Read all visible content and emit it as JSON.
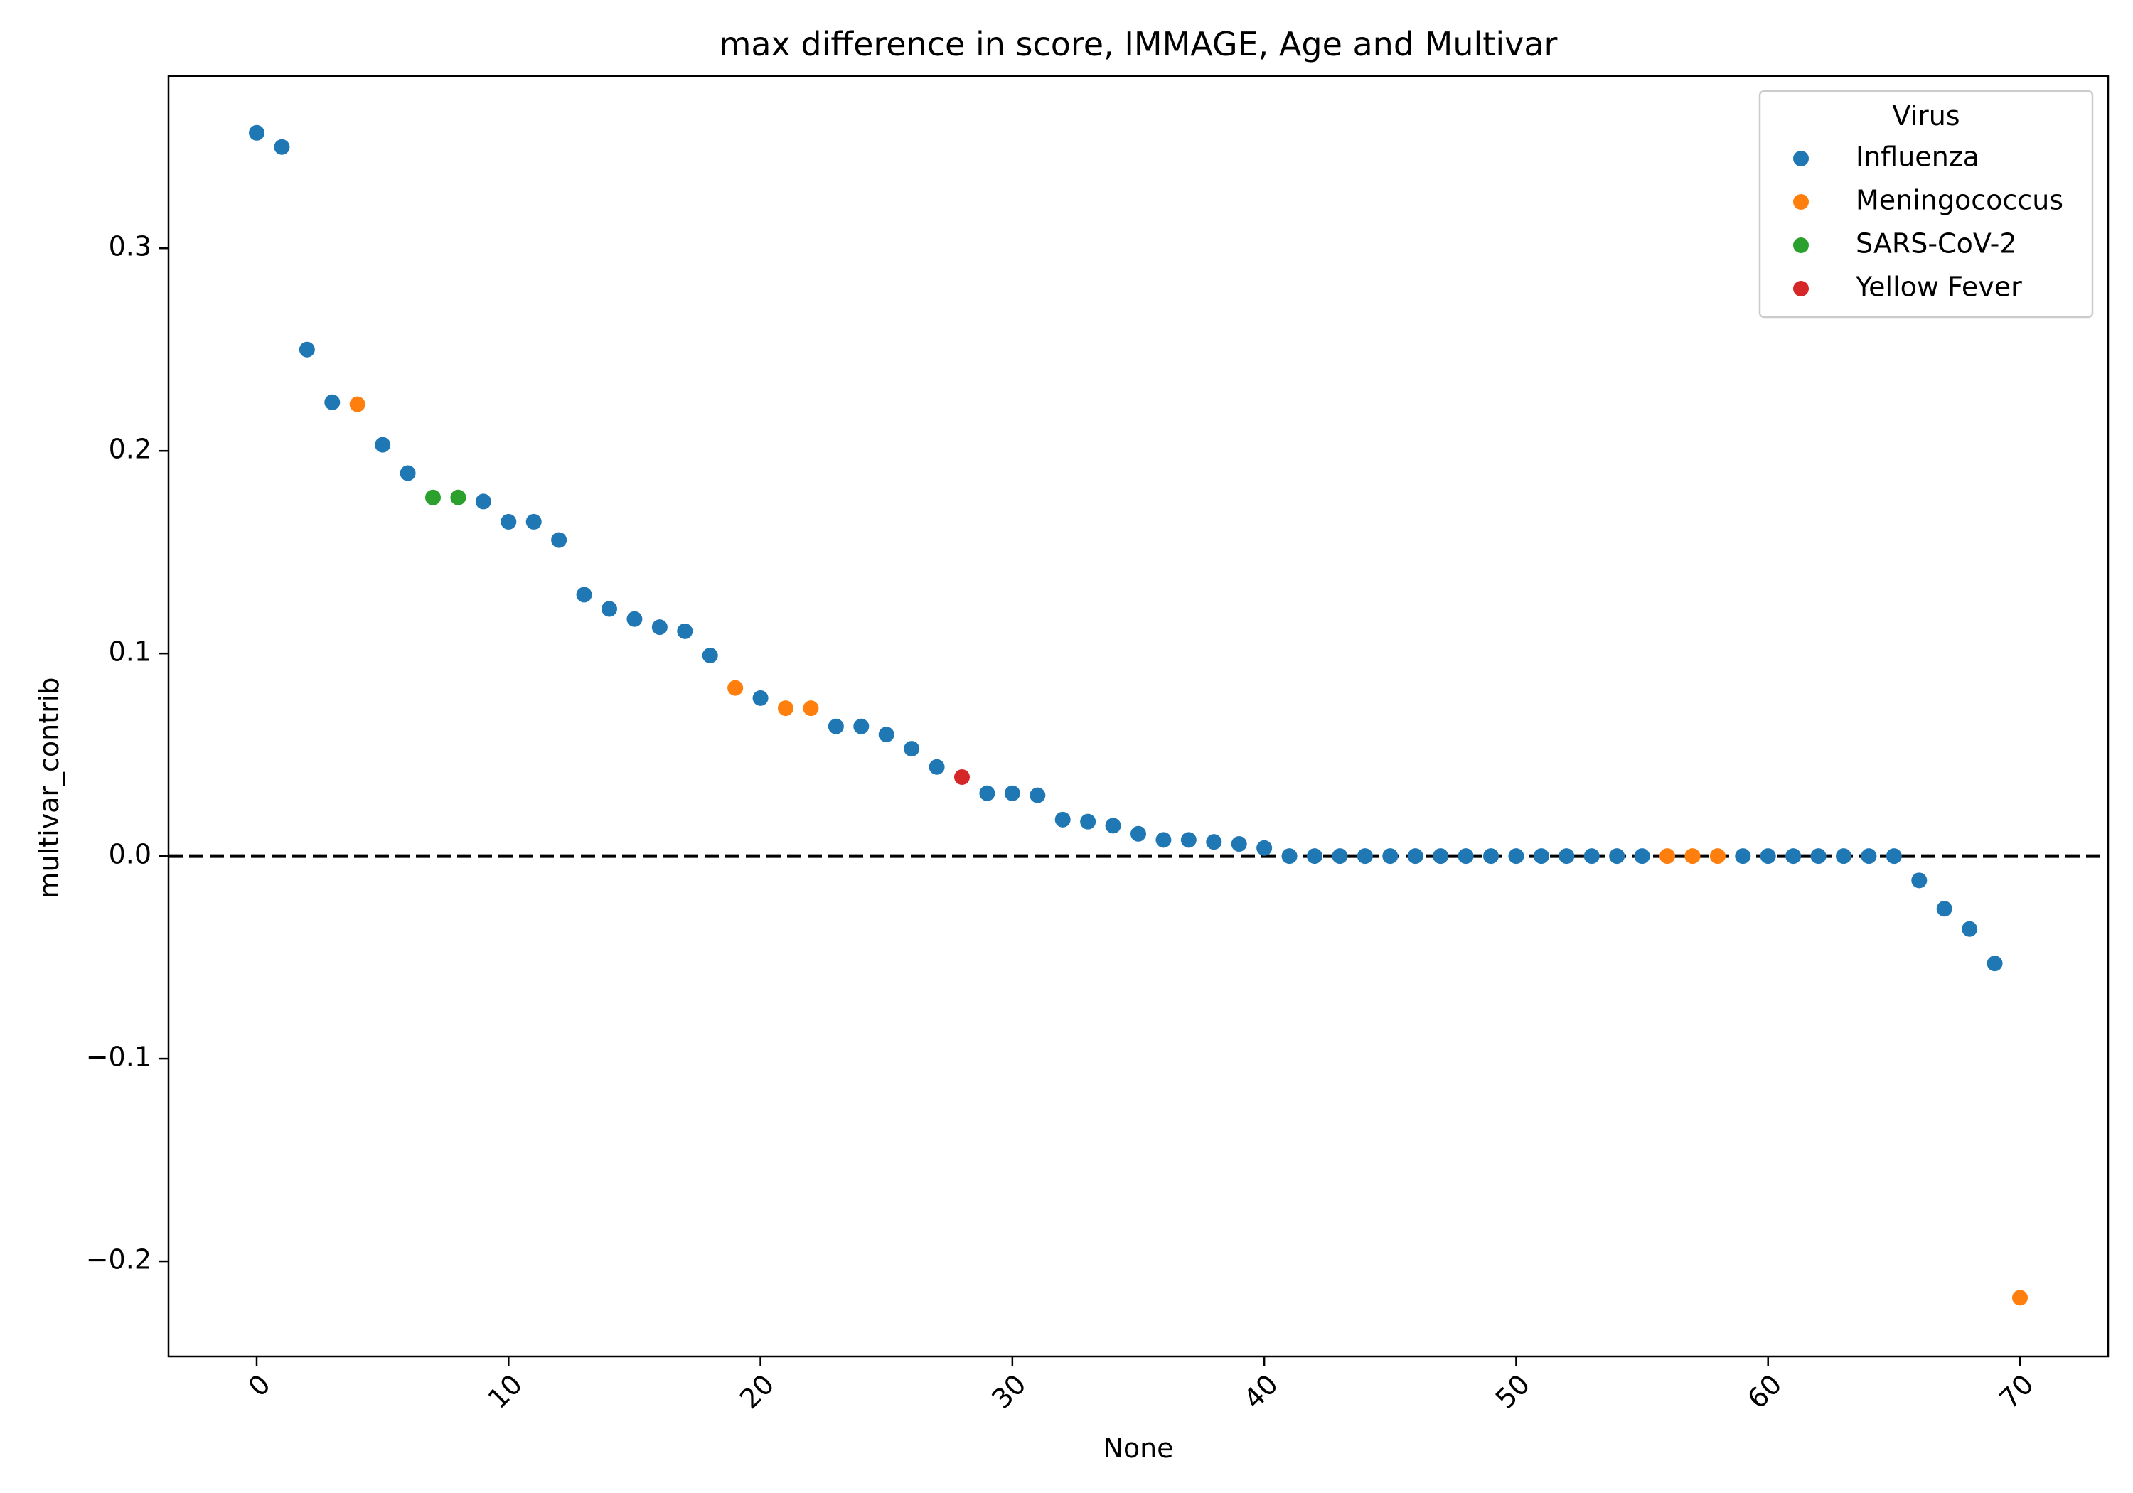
{
  "chart_data": {
    "type": "scatter",
    "title": "max difference in score, IMMAGE, Age and Multivar",
    "xlabel": "None",
    "ylabel": "multivar_contrib",
    "xlim": [
      -3.5,
      73.5
    ],
    "ylim": [
      -0.247,
      0.385
    ],
    "x_ticks": [
      0,
      10,
      20,
      30,
      40,
      50,
      60,
      70
    ],
    "y_ticks": [
      -0.2,
      -0.1,
      0.0,
      0.1,
      0.2,
      0.3
    ],
    "y_tick_labels": [
      "−0.2",
      "−0.1",
      "0.0",
      "0.1",
      "0.2",
      "0.3"
    ],
    "x_tick_rotation": 45,
    "reference_line": {
      "y": 0.0,
      "style": "dashed",
      "color": "#000000"
    },
    "legend": {
      "title": "Virus",
      "position": "upper right"
    },
    "series": [
      {
        "name": "Influenza",
        "color": "#1f77b4",
        "x": [
          0,
          1,
          2,
          3,
          5,
          6,
          9,
          10,
          11,
          12,
          13,
          14,
          15,
          16,
          17,
          18,
          20,
          23,
          24,
          25,
          26,
          27,
          29,
          30,
          31,
          32,
          33,
          34,
          35,
          36,
          37,
          38,
          39,
          40,
          41,
          42,
          43,
          44,
          45,
          46,
          47,
          48,
          49,
          50,
          51,
          52,
          53,
          54,
          55,
          59,
          60,
          61,
          62,
          63,
          64,
          65,
          66,
          67,
          68,
          69
        ],
        "y": [
          0.357,
          0.35,
          0.25,
          0.224,
          0.203,
          0.189,
          0.175,
          0.165,
          0.165,
          0.156,
          0.129,
          0.122,
          0.117,
          0.113,
          0.111,
          0.099,
          0.078,
          0.064,
          0.064,
          0.06,
          0.053,
          0.044,
          0.031,
          0.031,
          0.03,
          0.018,
          0.017,
          0.015,
          0.011,
          0.008,
          0.008,
          0.007,
          0.006,
          0.004,
          0.0,
          0.0,
          0.0,
          0.0,
          0.0,
          0.0,
          0.0,
          0.0,
          0.0,
          0.0,
          0.0,
          0.0,
          0.0,
          0.0,
          0.0,
          0.0,
          0.0,
          0.0,
          0.0,
          0.0,
          0.0,
          0.0,
          -0.012,
          -0.026,
          -0.036,
          -0.053
        ]
      },
      {
        "name": "Meningococcus",
        "color": "#ff7f0e",
        "x": [
          4,
          19,
          21,
          22,
          56,
          57,
          58,
          70
        ],
        "y": [
          0.223,
          0.083,
          0.073,
          0.073,
          0.0,
          0.0,
          0.0,
          -0.218
        ]
      },
      {
        "name": "SARS-CoV-2",
        "color": "#2ca02c",
        "x": [
          7,
          8
        ],
        "y": [
          0.177,
          0.177
        ]
      },
      {
        "name": "Yellow Fever",
        "color": "#d62728",
        "x": [
          28
        ],
        "y": [
          0.039
        ]
      }
    ]
  }
}
